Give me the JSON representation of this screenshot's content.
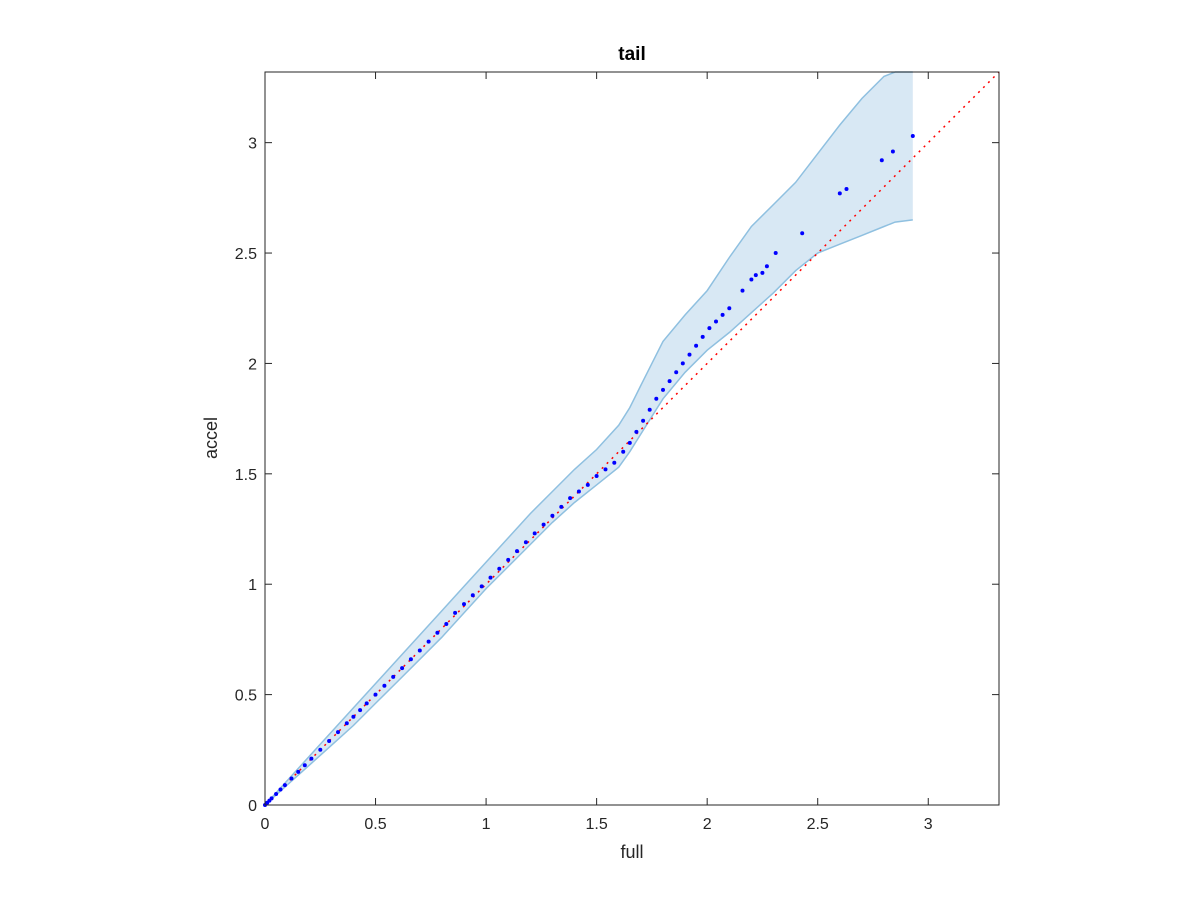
{
  "chart_data": {
    "type": "scatter",
    "title": "tail",
    "xlabel": "full",
    "ylabel": "accel",
    "xlim": [
      0,
      3.32
    ],
    "ylim": [
      0,
      3.32
    ],
    "xticks": [
      0,
      0.5,
      1,
      1.5,
      2,
      2.5,
      3
    ],
    "yticks": [
      0,
      0.5,
      1,
      1.5,
      2,
      2.5,
      3
    ],
    "xtick_labels": [
      "0",
      "0.5",
      "1",
      "1.5",
      "2",
      "2.5",
      "3"
    ],
    "ytick_labels": [
      "0",
      "0.5",
      "1",
      "1.5",
      "2",
      "2.5",
      "3"
    ],
    "grid": false,
    "colors": {
      "points": "#0000ff",
      "reference_line": "#ff0000",
      "band_fill": "#d8e8f4",
      "band_edge": "#8fc0e0",
      "axes": "#262626"
    },
    "reference_line": {
      "style": "dotted",
      "from": [
        0,
        0
      ],
      "to": [
        3.32,
        3.32
      ]
    },
    "band": {
      "x": [
        0,
        0.1,
        0.2,
        0.3,
        0.4,
        0.5,
        0.6,
        0.7,
        0.8,
        0.9,
        1.0,
        1.1,
        1.2,
        1.3,
        1.4,
        1.5,
        1.6,
        1.65,
        1.7,
        1.75,
        1.8,
        1.9,
        2.0,
        2.1,
        2.2,
        2.3,
        2.4,
        2.5,
        2.6,
        2.7,
        2.8,
        2.85,
        2.93
      ],
      "upper": [
        0.0,
        0.11,
        0.22,
        0.33,
        0.44,
        0.55,
        0.66,
        0.77,
        0.88,
        0.99,
        1.1,
        1.21,
        1.32,
        1.42,
        1.52,
        1.61,
        1.72,
        1.8,
        1.9,
        2.0,
        2.1,
        2.22,
        2.33,
        2.48,
        2.62,
        2.72,
        2.82,
        2.95,
        3.08,
        3.2,
        3.3,
        3.32,
        3.32
      ],
      "lower": [
        0.0,
        0.09,
        0.18,
        0.27,
        0.36,
        0.46,
        0.56,
        0.66,
        0.76,
        0.87,
        0.98,
        1.08,
        1.18,
        1.28,
        1.37,
        1.45,
        1.53,
        1.6,
        1.68,
        1.76,
        1.84,
        1.96,
        2.06,
        2.14,
        2.23,
        2.32,
        2.42,
        2.5,
        2.54,
        2.58,
        2.62,
        2.64,
        2.65
      ]
    },
    "series": [
      {
        "x": [
          0.0,
          0.01,
          0.02,
          0.03,
          0.05,
          0.07,
          0.09,
          0.12,
          0.15,
          0.18,
          0.21,
          0.25,
          0.29,
          0.33,
          0.37,
          0.4,
          0.43,
          0.46,
          0.5,
          0.54,
          0.58,
          0.62,
          0.66,
          0.7,
          0.74,
          0.78,
          0.82,
          0.86,
          0.9,
          0.94,
          0.98,
          1.02,
          1.06,
          1.1,
          1.14,
          1.18,
          1.22,
          1.26,
          1.3,
          1.34,
          1.38,
          1.42,
          1.46,
          1.5,
          1.54,
          1.58,
          1.62,
          1.65,
          1.68,
          1.71,
          1.74,
          1.77,
          1.8,
          1.83,
          1.86,
          1.89,
          1.92,
          1.95,
          1.98,
          2.01,
          2.04,
          2.07,
          2.1,
          2.16,
          2.2,
          2.22,
          2.25,
          2.27,
          2.31,
          2.43,
          2.6,
          2.63,
          2.79,
          2.84,
          2.93
        ],
        "y": [
          0.0,
          0.01,
          0.02,
          0.03,
          0.05,
          0.07,
          0.09,
          0.12,
          0.15,
          0.18,
          0.21,
          0.25,
          0.29,
          0.33,
          0.37,
          0.4,
          0.43,
          0.46,
          0.5,
          0.54,
          0.58,
          0.62,
          0.66,
          0.7,
          0.74,
          0.78,
          0.82,
          0.87,
          0.91,
          0.95,
          0.99,
          1.03,
          1.07,
          1.11,
          1.15,
          1.19,
          1.23,
          1.27,
          1.31,
          1.35,
          1.39,
          1.42,
          1.45,
          1.49,
          1.52,
          1.55,
          1.6,
          1.64,
          1.69,
          1.74,
          1.79,
          1.84,
          1.88,
          1.92,
          1.96,
          2.0,
          2.04,
          2.08,
          2.12,
          2.16,
          2.19,
          2.22,
          2.25,
          2.33,
          2.38,
          2.4,
          2.41,
          2.44,
          2.5,
          2.59,
          2.77,
          2.79,
          2.92,
          2.96,
          3.03
        ]
      }
    ]
  }
}
